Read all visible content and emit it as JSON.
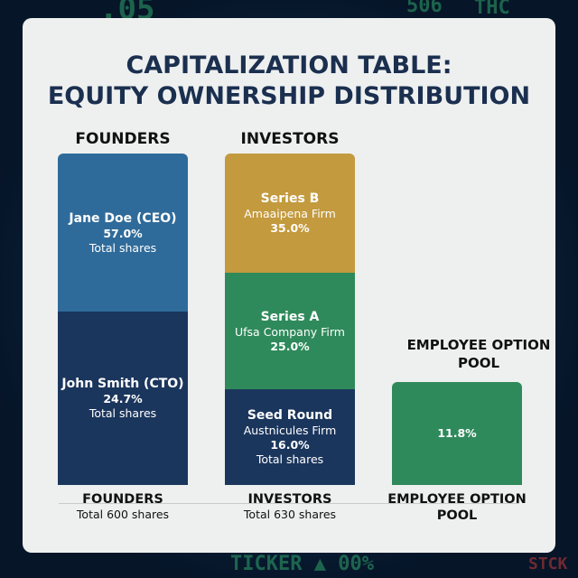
{
  "title_line1": "CAPITALIZATION TABLE:",
  "title_line2": "EQUITY OWNERSHIP DISTRIBUTION",
  "background_ticker": {
    "top_left": ".05",
    "top_mid": "506",
    "top_right": "THC",
    "bottom": "TICKER ▲ 00%",
    "bottom_right": "STCK"
  },
  "chart_data": {
    "type": "bar",
    "stacked": true,
    "groups": [
      {
        "header": "FOUNDERS",
        "footer": "FOUNDERS",
        "footer_sub": "Total 600 shares",
        "segments": [
          {
            "name": "Jane Doe (CEO)",
            "value_label": "57.0%",
            "value": 57.0,
            "sub": "Total shares",
            "color": "#2f6b9a"
          },
          {
            "name": "John Smith (CTO)",
            "value_label": "24.7%",
            "value": 24.7,
            "sub": "Total shares",
            "color": "#1b365d"
          }
        ]
      },
      {
        "header": "INVESTORS",
        "footer": "INVESTORS",
        "footer_sub": "Total 630 shares",
        "segments": [
          {
            "name": "Series B",
            "firm": "Amaaipena Firm",
            "value_label": "35.0%",
            "value": 35.0,
            "color": "#c39a3e"
          },
          {
            "name": "Series A",
            "firm": "Ufsa Company Firm",
            "value_label": "25.0%",
            "value": 25.0,
            "color": "#2f8a5b"
          },
          {
            "name": "Seed Round",
            "firm": "Austnicules Firm",
            "value_label": "16.0%",
            "value": 16.0,
            "sub": "Total shares",
            "color": "#1b365d"
          }
        ]
      },
      {
        "header": "EMPLOYEE OPTION POOL",
        "footer": "EMPLOYEE OPTION POOL",
        "segments": [
          {
            "value_label": "11.8%",
            "value": 11.8,
            "color": "#2f8a5b"
          }
        ]
      }
    ]
  }
}
